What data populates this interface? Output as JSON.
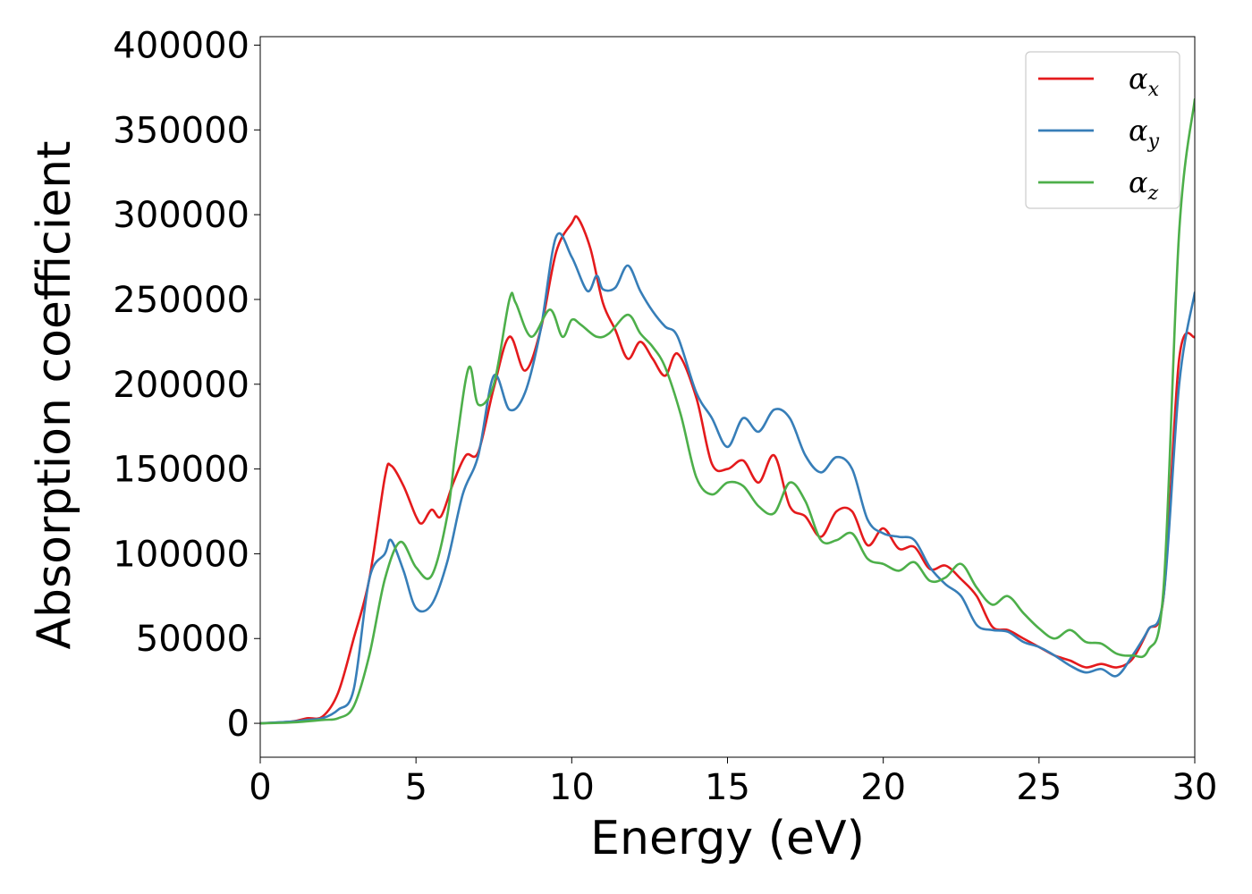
{
  "chart_data": {
    "type": "line",
    "title": "",
    "xlabel": "Energy (eV)",
    "ylabel": "Absorption coefficient",
    "xlim": [
      0,
      30
    ],
    "ylim": [
      -20000,
      405000
    ],
    "xticks": [
      0,
      5,
      10,
      15,
      20,
      25,
      30
    ],
    "yticks": [
      0,
      50000,
      100000,
      150000,
      200000,
      250000,
      300000,
      350000,
      400000
    ],
    "grid": false,
    "legend_position": "top-right",
    "series": [
      {
        "name": "α_x",
        "symbol": "α",
        "subscript": "x",
        "color": "#e41a1c",
        "x": [
          0,
          1,
          1.5,
          2,
          2.5,
          3,
          3.5,
          4,
          4.2,
          4.6,
          5,
          5.2,
          5.5,
          5.8,
          6.2,
          6.6,
          7,
          7.5,
          8,
          8.5,
          9,
          9.5,
          10,
          10.2,
          10.6,
          11,
          11.4,
          11.8,
          12.2,
          12.6,
          13,
          13.4,
          14,
          14.5,
          15,
          15.5,
          16,
          16.5,
          17,
          17.5,
          18,
          18.5,
          19,
          19.5,
          20,
          20.5,
          21,
          21.5,
          22,
          22.5,
          23,
          23.5,
          24,
          24.5,
          25,
          25.5,
          26,
          26.5,
          27,
          27.5,
          28,
          28.5,
          29,
          29.5,
          30
        ],
        "y": [
          0,
          1000,
          3000,
          4000,
          18000,
          50000,
          85000,
          145000,
          152000,
          140000,
          122000,
          118000,
          126000,
          122000,
          142000,
          158000,
          160000,
          198000,
          228000,
          208000,
          232000,
          278000,
          295000,
          298000,
          280000,
          248000,
          232000,
          215000,
          225000,
          215000,
          205000,
          218000,
          192000,
          153000,
          150000,
          155000,
          142000,
          158000,
          128000,
          122000,
          110000,
          125000,
          125000,
          105000,
          115000,
          103000,
          104000,
          91000,
          93000,
          85000,
          75000,
          57000,
          55000,
          50000,
          45000,
          40000,
          37000,
          33000,
          35000,
          33000,
          38000,
          55000,
          75000,
          215000,
          228000
        ]
      },
      {
        "name": "α_y",
        "symbol": "α",
        "subscript": "y",
        "color": "#377eb8",
        "x": [
          0,
          1,
          1.5,
          2,
          2.5,
          3,
          3.5,
          4,
          4.2,
          4.6,
          5,
          5.5,
          6,
          6.5,
          7,
          7.5,
          8,
          8.5,
          9,
          9.5,
          10,
          10.5,
          10.8,
          11,
          11.4,
          11.8,
          12.2,
          12.6,
          13,
          13.4,
          14,
          14.5,
          15,
          15.5,
          16,
          16.5,
          17,
          17.5,
          18,
          18.5,
          19,
          19.5,
          20,
          20.5,
          21,
          21.5,
          22,
          22.5,
          23,
          23.5,
          24,
          24.5,
          25,
          25.5,
          26,
          26.5,
          27,
          27.5,
          28,
          28.5,
          29,
          29.5,
          30
        ],
        "y": [
          0,
          1000,
          2000,
          3000,
          8000,
          20000,
          85000,
          100000,
          108000,
          90000,
          68000,
          70000,
          95000,
          135000,
          158000,
          205000,
          185000,
          195000,
          232000,
          287000,
          275000,
          255000,
          264000,
          256000,
          257000,
          270000,
          255000,
          243000,
          234000,
          228000,
          195000,
          180000,
          163000,
          180000,
          172000,
          185000,
          180000,
          158000,
          148000,
          157000,
          150000,
          120000,
          112000,
          110000,
          108000,
          92000,
          82000,
          75000,
          58000,
          55000,
          54000,
          48000,
          45000,
          40000,
          34000,
          30000,
          32000,
          28000,
          40000,
          55000,
          75000,
          200000,
          254000
        ]
      },
      {
        "name": "α_z",
        "symbol": "α",
        "subscript": "z",
        "color": "#4daf4a",
        "x": [
          0,
          1,
          2,
          2.5,
          3,
          3.5,
          4,
          4.5,
          5,
          5.5,
          6,
          6.3,
          6.7,
          7,
          7.5,
          8,
          8.2,
          8.7,
          9.3,
          9.7,
          10,
          10.3,
          10.8,
          11.2,
          11.8,
          12.2,
          12.6,
          13,
          13.5,
          14,
          14.5,
          15,
          15.5,
          16,
          16.5,
          17,
          17.5,
          18,
          18.5,
          19,
          19.5,
          20,
          20.5,
          21,
          21.5,
          22,
          22.5,
          23,
          23.5,
          24,
          24.5,
          25,
          25.5,
          26,
          26.5,
          27,
          27.5,
          28,
          28.5,
          29,
          29.5,
          30
        ],
        "y": [
          0,
          500,
          2000,
          3000,
          10000,
          40000,
          85000,
          107000,
          92000,
          87000,
          122000,
          165000,
          210000,
          188000,
          200000,
          250000,
          248000,
          228000,
          244000,
          228000,
          238000,
          235000,
          228000,
          230000,
          241000,
          230000,
          222000,
          210000,
          182000,
          145000,
          135000,
          142000,
          140000,
          128000,
          124000,
          142000,
          131000,
          108000,
          108000,
          112000,
          97000,
          94000,
          90000,
          95000,
          84000,
          86000,
          94000,
          80000,
          70000,
          75000,
          65000,
          56000,
          50000,
          55000,
          48000,
          47000,
          41000,
          40000,
          43000,
          80000,
          290000,
          368000
        ]
      }
    ]
  }
}
